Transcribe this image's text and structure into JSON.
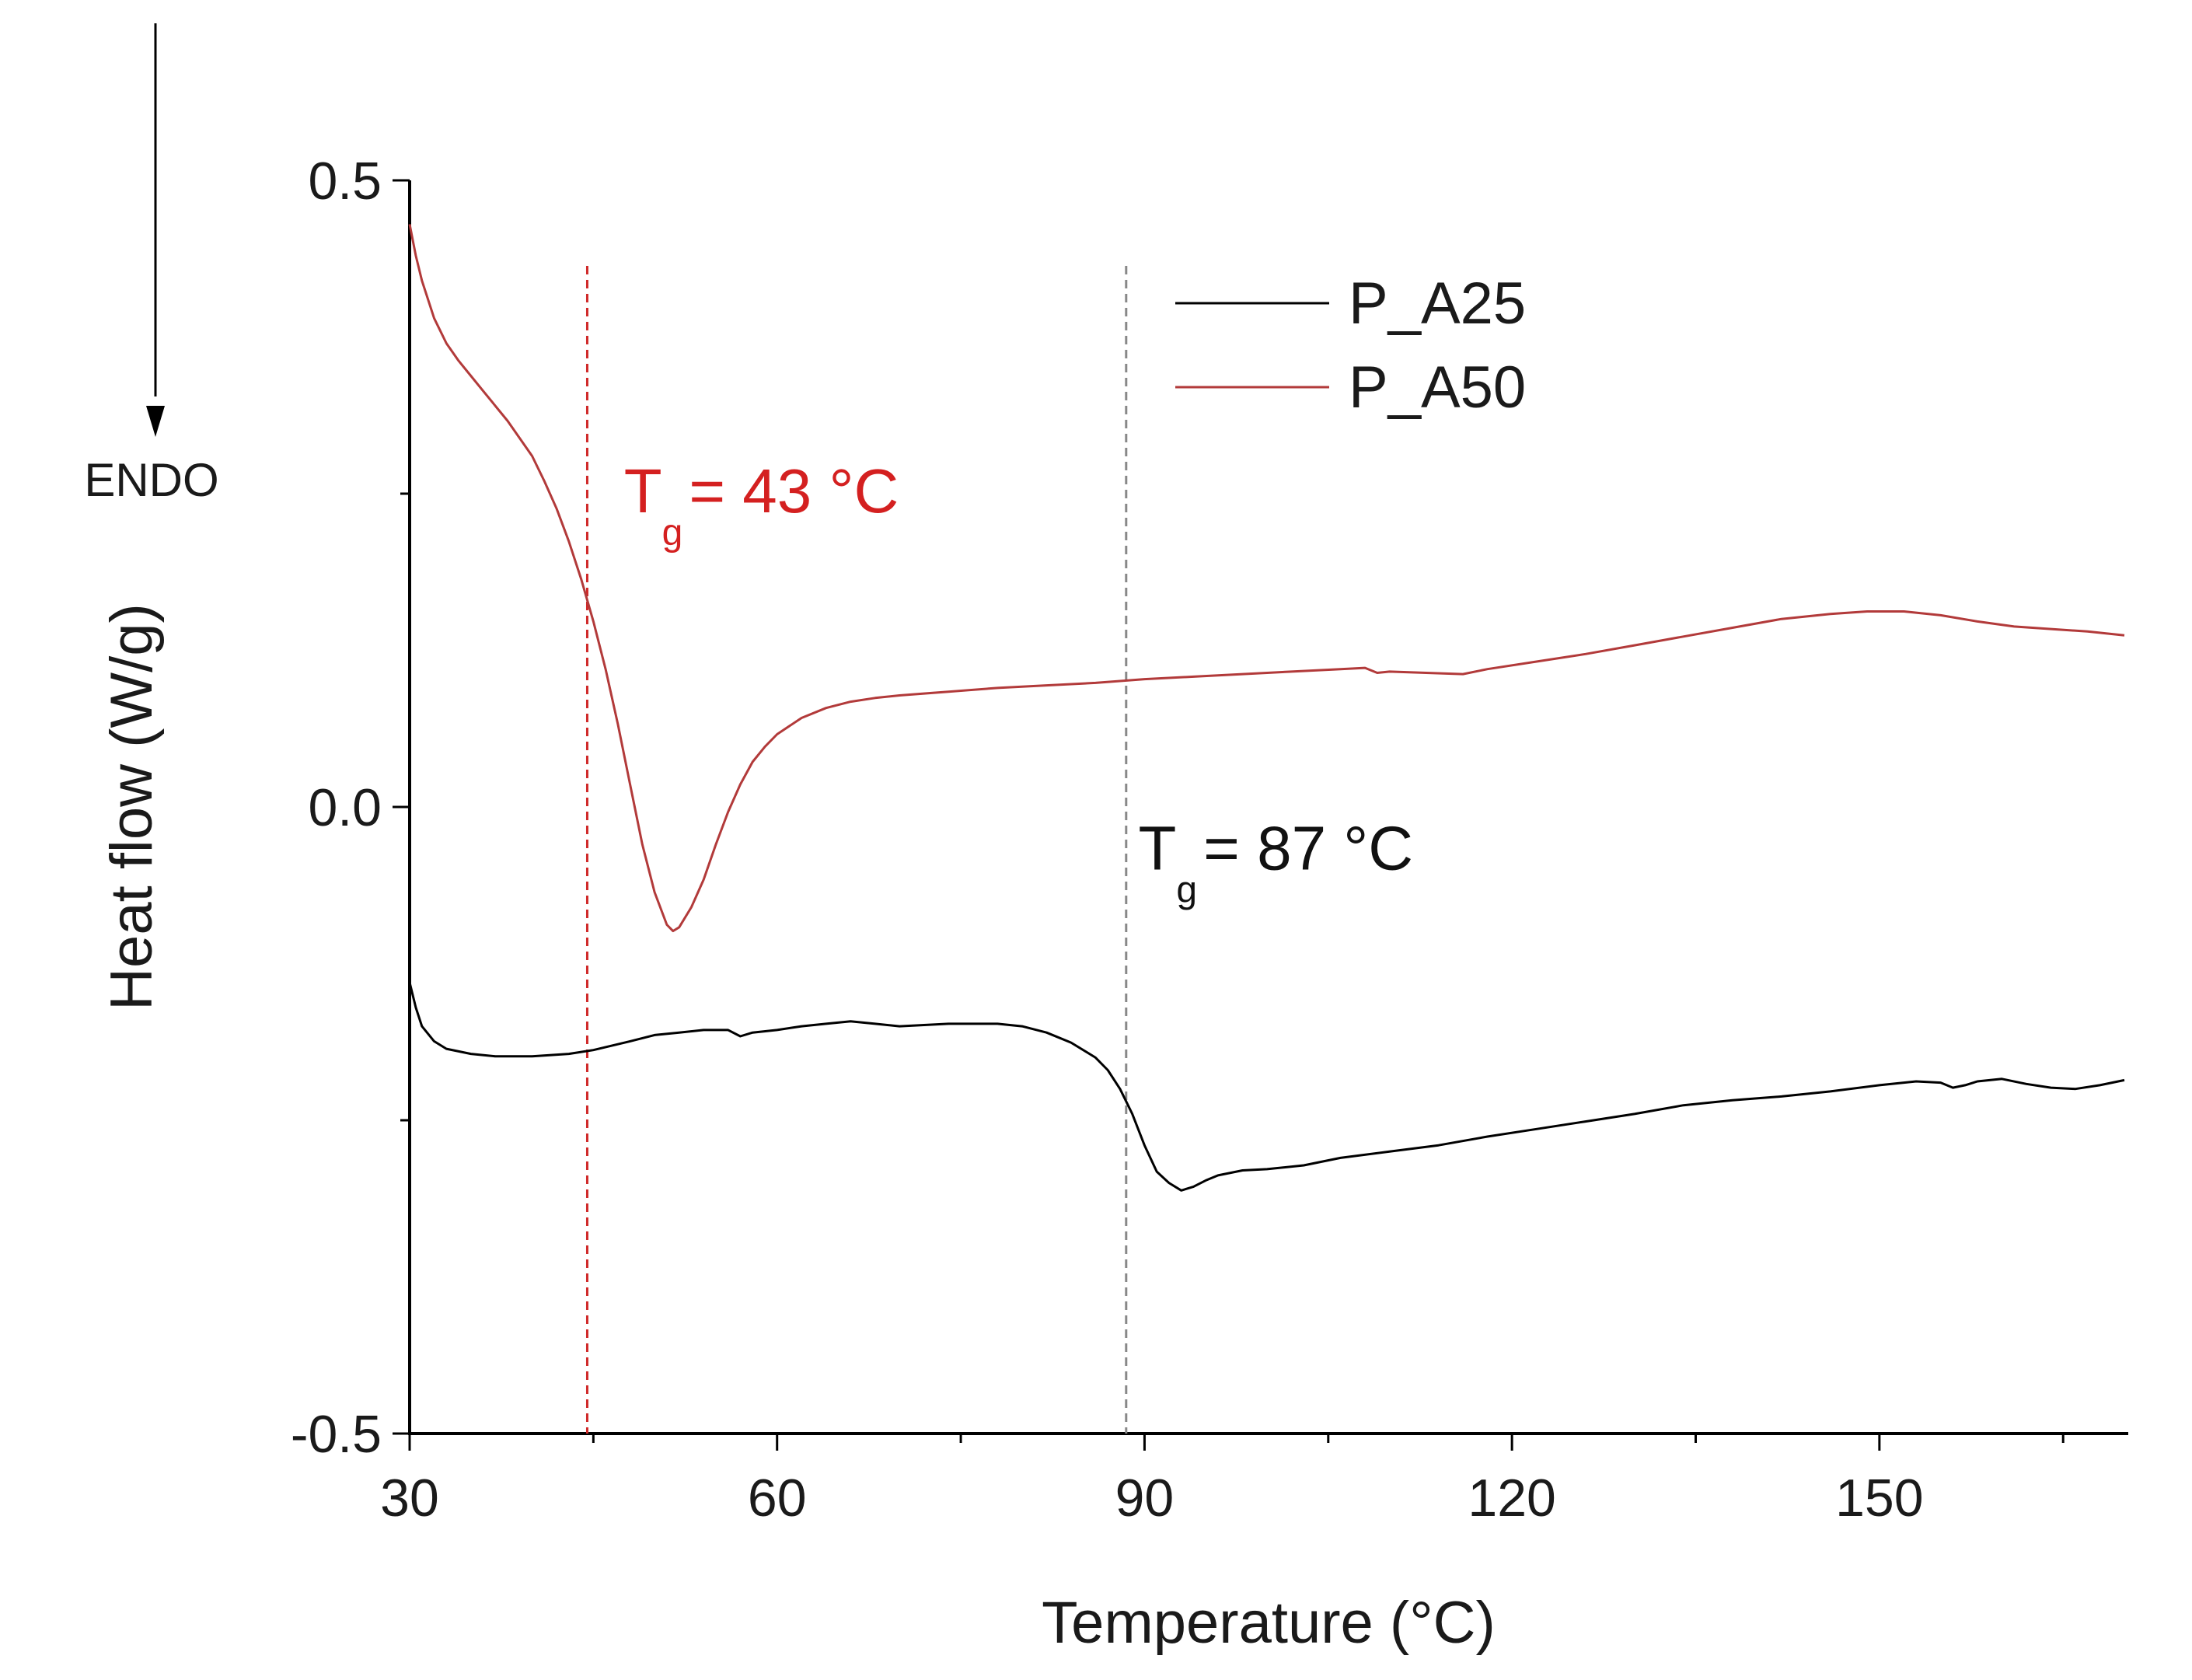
{
  "chart_data": {
    "type": "line",
    "title": "",
    "xlabel": "Temperature (°C)",
    "ylabel": "Heat flow (W/g)",
    "xlim": [
      30,
      170
    ],
    "ylim": [
      -0.5,
      0.5
    ],
    "x_ticks": [
      30,
      60,
      90,
      120,
      150
    ],
    "x_tick_labels": [
      "30",
      "60",
      "90",
      "120",
      "150"
    ],
    "x_minor_ticks": [
      45,
      75,
      105,
      135,
      165
    ],
    "y_ticks": [
      0.5,
      0.0,
      -0.5
    ],
    "y_tick_labels": [
      "0.5",
      "0.0",
      "-0.5"
    ],
    "y_minor_ticks": [
      0.25,
      -0.25
    ],
    "grid": false,
    "legend_position": "top-right",
    "endo_label": "ENDO",
    "series": [
      {
        "name": "P_A25",
        "color": "#000000",
        "points": [
          [
            30.0,
            -0.14
          ],
          [
            30.5,
            -0.16
          ],
          [
            31,
            -0.175
          ],
          [
            32,
            -0.187
          ],
          [
            33,
            -0.193
          ],
          [
            35,
            -0.197
          ],
          [
            37,
            -0.199
          ],
          [
            40,
            -0.199
          ],
          [
            43,
            -0.197
          ],
          [
            45,
            -0.194
          ],
          [
            48,
            -0.187
          ],
          [
            50,
            -0.182
          ],
          [
            52,
            -0.18
          ],
          [
            54,
            -0.178
          ],
          [
            56,
            -0.178
          ],
          [
            57,
            -0.183
          ],
          [
            58,
            -0.18
          ],
          [
            60,
            -0.178
          ],
          [
            62,
            -0.175
          ],
          [
            64,
            -0.173
          ],
          [
            66,
            -0.171
          ],
          [
            68,
            -0.173
          ],
          [
            70,
            -0.175
          ],
          [
            72,
            -0.174
          ],
          [
            74,
            -0.173
          ],
          [
            76,
            -0.173
          ],
          [
            78,
            -0.173
          ],
          [
            80,
            -0.175
          ],
          [
            82,
            -0.18
          ],
          [
            84,
            -0.188
          ],
          [
            86,
            -0.2
          ],
          [
            87,
            -0.21
          ],
          [
            88,
            -0.225
          ],
          [
            89,
            -0.245
          ],
          [
            90,
            -0.27
          ],
          [
            91,
            -0.291
          ],
          [
            92,
            -0.3
          ],
          [
            93,
            -0.306
          ],
          [
            94,
            -0.303
          ],
          [
            95,
            -0.298
          ],
          [
            96,
            -0.294
          ],
          [
            98,
            -0.29
          ],
          [
            100,
            -0.289
          ],
          [
            103,
            -0.286
          ],
          [
            106,
            -0.28
          ],
          [
            110,
            -0.275
          ],
          [
            114,
            -0.27
          ],
          [
            118,
            -0.263
          ],
          [
            122,
            -0.257
          ],
          [
            126,
            -0.251
          ],
          [
            130,
            -0.245
          ],
          [
            134,
            -0.238
          ],
          [
            138,
            -0.234
          ],
          [
            142,
            -0.231
          ],
          [
            146,
            -0.227
          ],
          [
            150,
            -0.222
          ],
          [
            153,
            -0.219
          ],
          [
            155,
            -0.22
          ],
          [
            156,
            -0.224
          ],
          [
            157,
            -0.222
          ],
          [
            158,
            -0.219
          ],
          [
            160,
            -0.217
          ],
          [
            162,
            -0.221
          ],
          [
            164,
            -0.224
          ],
          [
            166,
            -0.225
          ],
          [
            168,
            -0.222
          ],
          [
            170,
            -0.218
          ]
        ]
      },
      {
        "name": "P_A50",
        "color": "#b23a3a",
        "points": [
          [
            30.0,
            0.465
          ],
          [
            30.5,
            0.44
          ],
          [
            31,
            0.42
          ],
          [
            32,
            0.39
          ],
          [
            33,
            0.37
          ],
          [
            34,
            0.356
          ],
          [
            35,
            0.344
          ],
          [
            36,
            0.332
          ],
          [
            38,
            0.308
          ],
          [
            40,
            0.28
          ],
          [
            41,
            0.26
          ],
          [
            42,
            0.238
          ],
          [
            43,
            0.212
          ],
          [
            44,
            0.182
          ],
          [
            45,
            0.148
          ],
          [
            46,
            0.11
          ],
          [
            47,
            0.066
          ],
          [
            48,
            0.018
          ],
          [
            49,
            -0.03
          ],
          [
            50,
            -0.068
          ],
          [
            51,
            -0.094
          ],
          [
            51.5,
            -0.099
          ],
          [
            52,
            -0.096
          ],
          [
            53,
            -0.08
          ],
          [
            54,
            -0.058
          ],
          [
            55,
            -0.03
          ],
          [
            56,
            -0.004
          ],
          [
            57,
            0.018
          ],
          [
            58,
            0.036
          ],
          [
            59,
            0.048
          ],
          [
            60,
            0.058
          ],
          [
            62,
            0.071
          ],
          [
            64,
            0.079
          ],
          [
            66,
            0.084
          ],
          [
            68,
            0.087
          ],
          [
            70,
            0.089
          ],
          [
            74,
            0.092
          ],
          [
            78,
            0.095
          ],
          [
            82,
            0.097
          ],
          [
            86,
            0.099
          ],
          [
            90,
            0.102
          ],
          [
            94,
            0.104
          ],
          [
            98,
            0.106
          ],
          [
            102,
            0.108
          ],
          [
            106,
            0.11
          ],
          [
            108,
            0.111
          ],
          [
            109,
            0.107
          ],
          [
            110,
            0.108
          ],
          [
            113,
            0.107
          ],
          [
            116,
            0.106
          ],
          [
            118,
            0.11
          ],
          [
            122,
            0.116
          ],
          [
            126,
            0.122
          ],
          [
            130,
            0.129
          ],
          [
            134,
            0.136
          ],
          [
            138,
            0.143
          ],
          [
            142,
            0.15
          ],
          [
            146,
            0.154
          ],
          [
            149,
            0.156
          ],
          [
            152,
            0.156
          ],
          [
            155,
            0.153
          ],
          [
            158,
            0.148
          ],
          [
            161,
            0.144
          ],
          [
            164,
            0.142
          ],
          [
            167,
            0.14
          ],
          [
            170,
            0.137
          ]
        ]
      }
    ],
    "reference_lines": [
      {
        "x": 44.5,
        "color": "#d02a2a",
        "style": "dashed"
      },
      {
        "x": 88.5,
        "color": "#888888",
        "style": "dashed"
      }
    ],
    "annotations": [
      {
        "text": "T",
        "sub": "g",
        "value": "= 43 °C",
        "color": "#d42020",
        "x": 47.5,
        "y": 0.235
      },
      {
        "text": "T",
        "sub": "g",
        "value": "= 87 °C",
        "color": "#111111",
        "x": 89.5,
        "y": -0.05
      }
    ]
  }
}
